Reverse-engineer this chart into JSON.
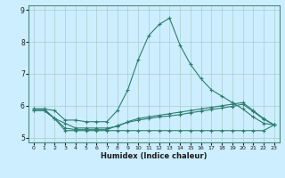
{
  "title": "",
  "xlabel": "Humidex (Indice chaleur)",
  "x": [
    0,
    1,
    2,
    3,
    4,
    5,
    6,
    7,
    8,
    9,
    10,
    11,
    12,
    13,
    14,
    15,
    16,
    17,
    18,
    19,
    20,
    21,
    22,
    23
  ],
  "line1": [
    5.9,
    5.9,
    5.85,
    5.55,
    5.55,
    5.5,
    5.5,
    5.5,
    5.85,
    6.5,
    7.45,
    8.2,
    8.55,
    8.75,
    7.9,
    7.3,
    6.85,
    6.5,
    6.3,
    6.1,
    5.9,
    5.65,
    5.45,
    5.4
  ],
  "line2": [
    5.9,
    5.9,
    5.6,
    5.45,
    5.3,
    5.3,
    5.3,
    5.3,
    5.35,
    5.5,
    5.6,
    5.65,
    5.7,
    5.75,
    5.8,
    5.85,
    5.9,
    5.95,
    6.0,
    6.05,
    6.1,
    5.85,
    5.6,
    5.4
  ],
  "line3": [
    5.85,
    5.85,
    5.6,
    5.22,
    5.22,
    5.22,
    5.22,
    5.22,
    5.22,
    5.22,
    5.22,
    5.22,
    5.22,
    5.22,
    5.22,
    5.22,
    5.22,
    5.22,
    5.22,
    5.22,
    5.22,
    5.22,
    5.22,
    5.4
  ],
  "line4": [
    5.85,
    5.85,
    5.6,
    5.3,
    5.25,
    5.25,
    5.25,
    5.25,
    5.38,
    5.48,
    5.55,
    5.6,
    5.65,
    5.68,
    5.72,
    5.78,
    5.83,
    5.88,
    5.93,
    5.98,
    6.05,
    5.82,
    5.58,
    5.4
  ],
  "color": "#2e7d6e",
  "bg_color": "#cceeff",
  "grid_major_color": "#aacccc",
  "grid_minor_color": "#bbdddd",
  "ylim": [
    4.85,
    9.15
  ],
  "xlim": [
    -0.5,
    23.5
  ],
  "yticks": [
    5,
    6,
    7,
    8,
    9
  ],
  "xticks": [
    0,
    1,
    2,
    3,
    4,
    5,
    6,
    7,
    8,
    9,
    10,
    11,
    12,
    13,
    14,
    15,
    16,
    17,
    18,
    19,
    20,
    21,
    22,
    23
  ]
}
